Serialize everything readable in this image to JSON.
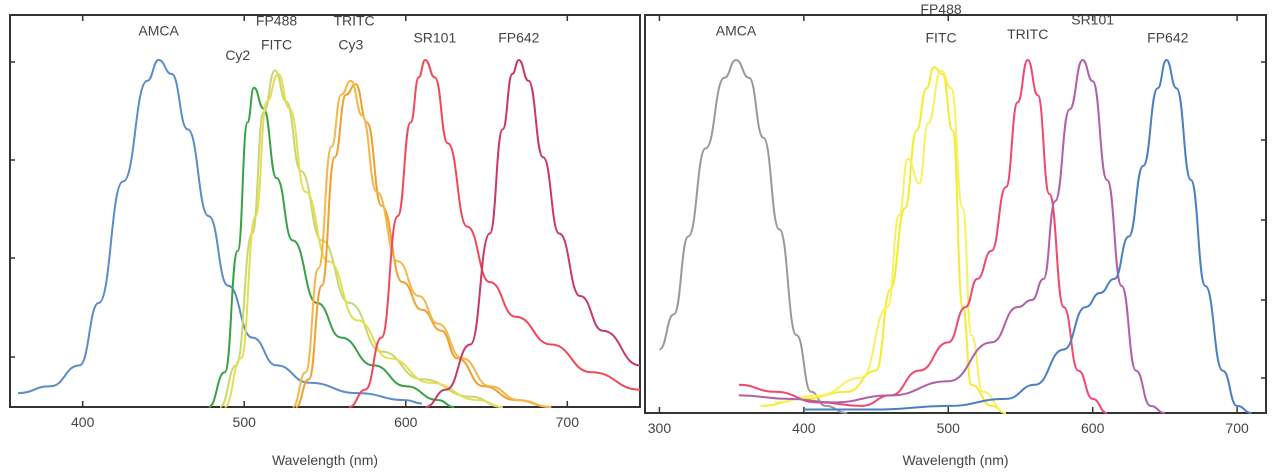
{
  "chart_data": [
    {
      "type": "line",
      "title": "",
      "xlabel": "Wavelength (nm)",
      "ylabel": "",
      "xlim": [
        355,
        745
      ],
      "ylim": [
        0,
        100
      ],
      "x_ticks": [
        400,
        500,
        600,
        700
      ],
      "grid": false,
      "series": [
        {
          "name": "AMCA",
          "color": "#5a8cc8",
          "peak": 447,
          "points": [
            [
              360,
              4
            ],
            [
              380,
              6
            ],
            [
              398,
              12
            ],
            [
              410,
              30
            ],
            [
              425,
              65
            ],
            [
              440,
              94
            ],
            [
              447,
              100
            ],
            [
              455,
              96
            ],
            [
              465,
              80
            ],
            [
              478,
              55
            ],
            [
              490,
              35
            ],
            [
              505,
              20
            ],
            [
              520,
              12
            ],
            [
              540,
              7
            ],
            [
              570,
              4
            ],
            [
              600,
              2
            ],
            [
              610,
              1
            ]
          ]
        },
        {
          "name": "Cy2",
          "color": "#3aa045",
          "peak": 506,
          "points": [
            [
              478,
              0
            ],
            [
              488,
              10
            ],
            [
              496,
              45
            ],
            [
              502,
              82
            ],
            [
              506,
              92
            ],
            [
              512,
              86
            ],
            [
              520,
              66
            ],
            [
              530,
              48
            ],
            [
              545,
              30
            ],
            [
              560,
              20
            ],
            [
              580,
              12
            ],
            [
              600,
              6
            ],
            [
              620,
              2
            ],
            [
              630,
              0
            ]
          ]
        },
        {
          "name": "FP488",
          "color": "#c8d870",
          "peak": 519,
          "points": [
            [
              485,
              0
            ],
            [
              495,
              12
            ],
            [
              505,
              50
            ],
            [
              512,
              85
            ],
            [
              519,
              97
            ],
            [
              526,
              88
            ],
            [
              535,
              68
            ],
            [
              548,
              48
            ],
            [
              565,
              30
            ],
            [
              585,
              16
            ],
            [
              610,
              8
            ],
            [
              640,
              3
            ],
            [
              660,
              0
            ]
          ]
        },
        {
          "name": "FITC",
          "color": "#e6dd55",
          "peak": 521,
          "points": [
            [
              488,
              0
            ],
            [
              498,
              14
            ],
            [
              507,
              55
            ],
            [
              514,
              88
            ],
            [
              521,
              96
            ],
            [
              528,
              86
            ],
            [
              538,
              62
            ],
            [
              552,
              42
            ],
            [
              570,
              25
            ],
            [
              590,
              14
            ],
            [
              615,
              7
            ],
            [
              645,
              2
            ],
            [
              660,
              0
            ]
          ]
        },
        {
          "name": "TRITC",
          "color": "#f0a030",
          "peak": 569,
          "points": [
            [
              532,
              0
            ],
            [
              540,
              8
            ],
            [
              548,
              35
            ],
            [
              556,
              72
            ],
            [
              563,
              90
            ],
            [
              569,
              93
            ],
            [
              576,
              82
            ],
            [
              585,
              58
            ],
            [
              598,
              36
            ],
            [
              610,
              28
            ],
            [
              622,
              22
            ],
            [
              632,
              14
            ],
            [
              648,
              6
            ],
            [
              668,
              2
            ],
            [
              690,
              0
            ]
          ]
        },
        {
          "name": "Cy3",
          "color": "#f4b84a",
          "peak": 566,
          "points": [
            [
              530,
              0
            ],
            [
              538,
              10
            ],
            [
              546,
              40
            ],
            [
              554,
              75
            ],
            [
              560,
              90
            ],
            [
              566,
              94
            ],
            [
              573,
              84
            ],
            [
              582,
              62
            ],
            [
              595,
              42
            ],
            [
              608,
              32
            ],
            [
              620,
              24
            ],
            [
              635,
              14
            ],
            [
              652,
              6
            ],
            [
              670,
              2
            ],
            [
              690,
              0
            ]
          ]
        },
        {
          "name": "SR101",
          "color": "#f04858",
          "peak": 612,
          "points": [
            [
              565,
              0
            ],
            [
              575,
              5
            ],
            [
              585,
              20
            ],
            [
              595,
              55
            ],
            [
              603,
              82
            ],
            [
              608,
              95
            ],
            [
              612,
              100
            ],
            [
              618,
              95
            ],
            [
              626,
              76
            ],
            [
              638,
              52
            ],
            [
              652,
              36
            ],
            [
              668,
              26
            ],
            [
              690,
              18
            ],
            [
              715,
              10
            ],
            [
              745,
              5
            ]
          ]
        },
        {
          "name": "FP642",
          "color": "#c83a62",
          "peak": 670,
          "points": [
            [
              612,
              0
            ],
            [
              625,
              5
            ],
            [
              640,
              18
            ],
            [
              652,
              50
            ],
            [
              660,
              80
            ],
            [
              666,
              96
            ],
            [
              670,
              100
            ],
            [
              676,
              94
            ],
            [
              685,
              72
            ],
            [
              695,
              50
            ],
            [
              708,
              32
            ],
            [
              722,
              22
            ],
            [
              745,
              12
            ]
          ]
        }
      ],
      "labels": [
        {
          "text": "AMCA",
          "x": 447,
          "y": 107
        },
        {
          "text": "Cy2",
          "x": 496,
          "y": 100
        },
        {
          "text": "FP488",
          "x": 520,
          "y": 110
        },
        {
          "text": "FITC",
          "x": 520,
          "y": 103
        },
        {
          "text": "TRITC",
          "x": 568,
          "y": 110
        },
        {
          "text": "Cy3",
          "x": 566,
          "y": 103
        },
        {
          "text": "SR101",
          "x": 618,
          "y": 105
        },
        {
          "text": "FP642",
          "x": 670,
          "y": 105
        }
      ]
    },
    {
      "type": "line",
      "title": "",
      "xlabel": "Wavelength (nm)",
      "ylabel": "",
      "xlim": [
        290,
        720
      ],
      "ylim": [
        0,
        100
      ],
      "x_ticks": [
        300,
        400,
        500,
        600,
        700
      ],
      "grid": false,
      "series": [
        {
          "name": "AMCA",
          "color": "#999999",
          "peak": 353,
          "points": [
            [
              300,
              18
            ],
            [
              310,
              28
            ],
            [
              320,
              50
            ],
            [
              332,
              75
            ],
            [
              345,
              95
            ],
            [
              353,
              100
            ],
            [
              362,
              95
            ],
            [
              372,
              78
            ],
            [
              383,
              52
            ],
            [
              395,
              22
            ],
            [
              405,
              6
            ],
            [
              415,
              2
            ],
            [
              430,
              0
            ]
          ]
        },
        {
          "name": "FP488",
          "color": "#f4ec30",
          "peak": 490,
          "points": [
            [
              370,
              2
            ],
            [
              400,
              4
            ],
            [
              430,
              6
            ],
            [
              450,
              12
            ],
            [
              460,
              35
            ],
            [
              470,
              58
            ],
            [
              478,
              80
            ],
            [
              485,
              92
            ],
            [
              490,
              98
            ],
            [
              496,
              96
            ],
            [
              503,
              80
            ],
            [
              510,
              30
            ],
            [
              516,
              8
            ],
            [
              530,
              2
            ],
            [
              540,
              0
            ]
          ]
        },
        {
          "name": "FITC",
          "color": "#f8f060",
          "peak": 495,
          "points": [
            [
              380,
              3
            ],
            [
              410,
              5
            ],
            [
              440,
              10
            ],
            [
              458,
              30
            ],
            [
              466,
              56
            ],
            [
              472,
              72
            ],
            [
              480,
              65
            ],
            [
              486,
              82
            ],
            [
              495,
              97
            ],
            [
              502,
              92
            ],
            [
              510,
              58
            ],
            [
              516,
              22
            ],
            [
              524,
              6
            ],
            [
              540,
              0
            ]
          ]
        },
        {
          "name": "TRITC",
          "color": "#f04870",
          "peak": 555,
          "points": [
            [
              355,
              8
            ],
            [
              380,
              6
            ],
            [
              410,
              3
            ],
            [
              440,
              2
            ],
            [
              460,
              5
            ],
            [
              480,
              12
            ],
            [
              500,
              20
            ],
            [
              512,
              30
            ],
            [
              520,
              38
            ],
            [
              530,
              46
            ],
            [
              540,
              64
            ],
            [
              548,
              88
            ],
            [
              555,
              100
            ],
            [
              562,
              90
            ],
            [
              570,
              62
            ],
            [
              580,
              30
            ],
            [
              590,
              12
            ],
            [
              600,
              4
            ],
            [
              610,
              0
            ]
          ]
        },
        {
          "name": "SR101",
          "color": "#b060a8",
          "peak": 593,
          "points": [
            [
              355,
              5
            ],
            [
              390,
              4
            ],
            [
              420,
              3
            ],
            [
              460,
              5
            ],
            [
              500,
              9
            ],
            [
              530,
              20
            ],
            [
              548,
              30
            ],
            [
              558,
              32
            ],
            [
              566,
              38
            ],
            [
              574,
              60
            ],
            [
              584,
              86
            ],
            [
              593,
              100
            ],
            [
              600,
              94
            ],
            [
              610,
              66
            ],
            [
              620,
              36
            ],
            [
              630,
              12
            ],
            [
              640,
              2
            ],
            [
              650,
              0
            ]
          ]
        },
        {
          "name": "FP642",
          "color": "#4a80c0",
          "peak": 651,
          "points": [
            [
              400,
              1
            ],
            [
              450,
              1
            ],
            [
              500,
              2
            ],
            [
              540,
              4
            ],
            [
              560,
              8
            ],
            [
              580,
              18
            ],
            [
              595,
              30
            ],
            [
              605,
              34
            ],
            [
              615,
              38
            ],
            [
              625,
              50
            ],
            [
              635,
              70
            ],
            [
              645,
              92
            ],
            [
              651,
              100
            ],
            [
              658,
              92
            ],
            [
              668,
              66
            ],
            [
              678,
              36
            ],
            [
              690,
              12
            ],
            [
              700,
              2
            ],
            [
              710,
              0
            ]
          ]
        }
      ],
      "labels": [
        {
          "text": "AMCA",
          "x": 353,
          "y": 107
        },
        {
          "text": "FP488",
          "x": 495,
          "y": 113
        },
        {
          "text": "FITC",
          "x": 495,
          "y": 105
        },
        {
          "text": "TRITC",
          "x": 555,
          "y": 106
        },
        {
          "text": "SR101",
          "x": 600,
          "y": 110
        },
        {
          "text": "FP642",
          "x": 652,
          "y": 105
        }
      ]
    }
  ]
}
